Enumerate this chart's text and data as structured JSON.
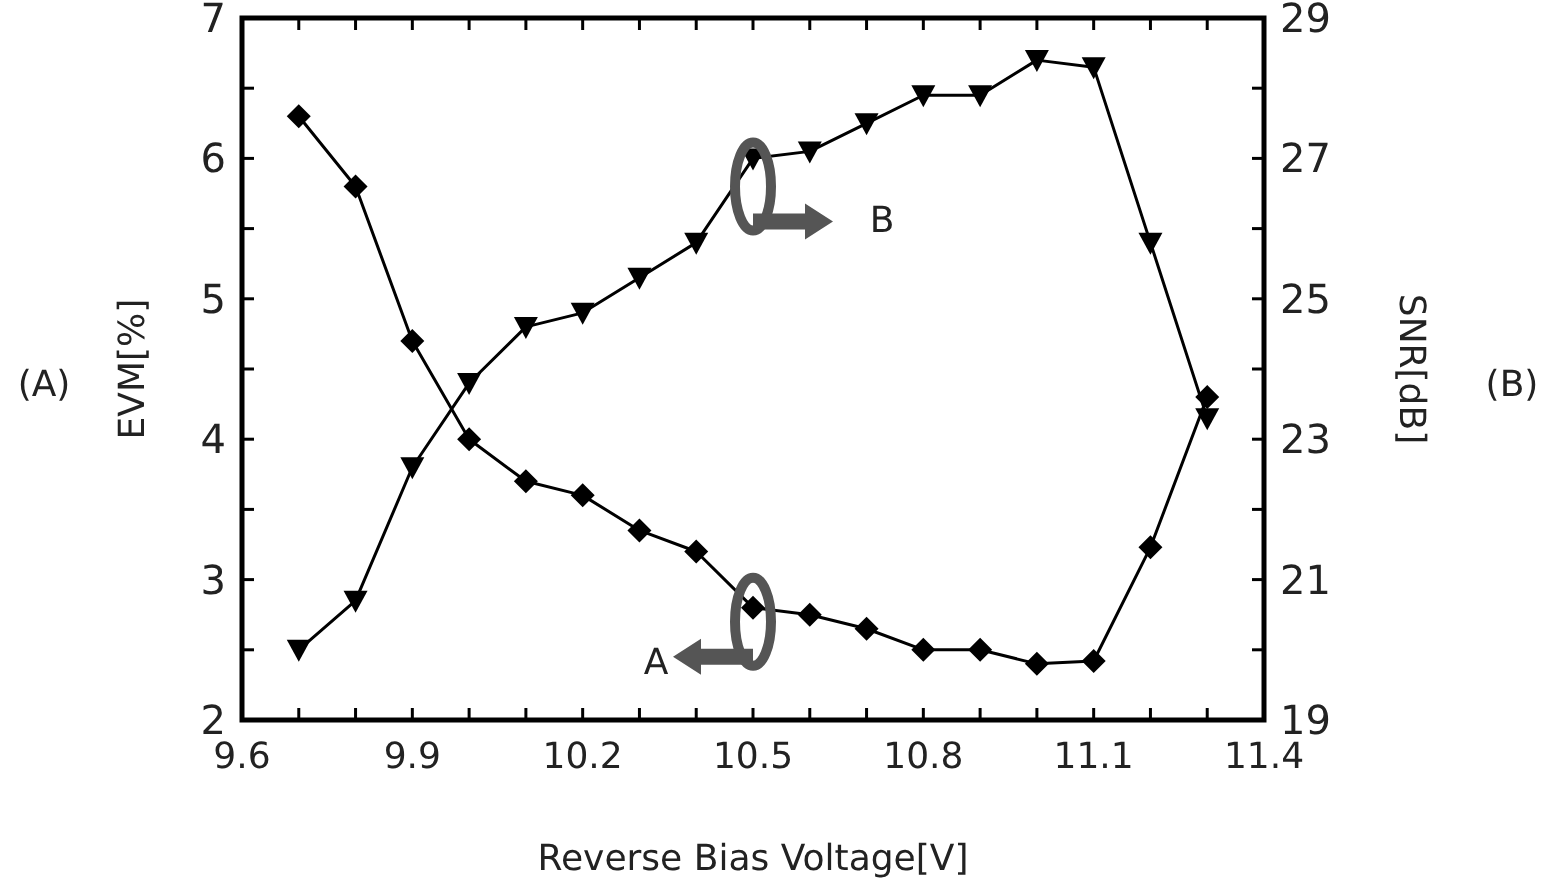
{
  "chart_data": {
    "type": "line",
    "xlabel": "Reverse Bias Voltage[V]",
    "ylabel": "EVM[%]",
    "y2label": "SNR[dB]",
    "x": [
      9.7,
      9.8,
      9.9,
      10.0,
      10.1,
      10.2,
      10.3,
      10.4,
      10.5,
      10.6,
      10.7,
      10.8,
      10.9,
      11.0,
      11.1,
      11.2,
      11.3
    ],
    "series": [
      {
        "color": "#000000",
        "marker": "diamond",
        "values": [
          6.3,
          5.8,
          4.7,
          4.0,
          3.7,
          3.6,
          3.35,
          3.2,
          2.8,
          2.75,
          2.65,
          2.5,
          2.5,
          2.4,
          2.42,
          3.23,
          4.3
        ]
      },
      {
        "color": "#000000",
        "marker": "triangle",
        "axis": "y2",
        "values": [
          20.0,
          20.7,
          22.6,
          23.8,
          24.6,
          24.8,
          25.3,
          25.8,
          27.0,
          27.1,
          27.5,
          27.9,
          27.9,
          28.4,
          28.3,
          25.8,
          23.3
        ]
      }
    ],
    "xlim": [
      9.6,
      11.4
    ],
    "xticks": [
      9.6,
      {
        "value": 9.7,
        "label": null
      },
      {
        "value": 9.8,
        "label": null
      },
      9.9,
      {
        "value": 10.0,
        "label": null
      },
      {
        "value": 10.1,
        "label": null
      },
      10.2,
      {
        "value": 10.3,
        "label": null
      },
      {
        "value": 10.4,
        "label": null
      },
      10.5,
      {
        "value": 10.6,
        "label": null
      },
      {
        "value": 10.7,
        "label": null
      },
      10.8,
      {
        "value": 10.9,
        "label": null
      },
      {
        "value": 11.0,
        "label": null
      },
      11.1,
      {
        "value": 11.2,
        "label": null
      },
      {
        "value": 11.3,
        "label": null
      },
      11.4
    ],
    "ylim": [
      2,
      7
    ],
    "yticks": [
      2,
      {
        "value": 2.5,
        "label": null
      },
      3,
      {
        "value": 3.5,
        "label": null
      },
      4,
      {
        "value": 4.5,
        "label": null
      },
      5,
      {
        "value": 5.5,
        "label": null
      },
      6,
      {
        "value": 6.5,
        "label": null
      },
      7
    ],
    "y2lim": [
      19,
      29
    ],
    "y2ticks": [
      19,
      {
        "value": 20,
        "label": null
      },
      21,
      {
        "value": 22,
        "label": null
      },
      23,
      {
        "value": 24,
        "label": null
      },
      25,
      {
        "value": 26,
        "label": null
      },
      27,
      {
        "value": 28,
        "label": null
      },
      29
    ],
    "annotations": [
      "A",
      "B",
      "(A)",
      "(B)"
    ],
    "line_style": "solid"
  }
}
